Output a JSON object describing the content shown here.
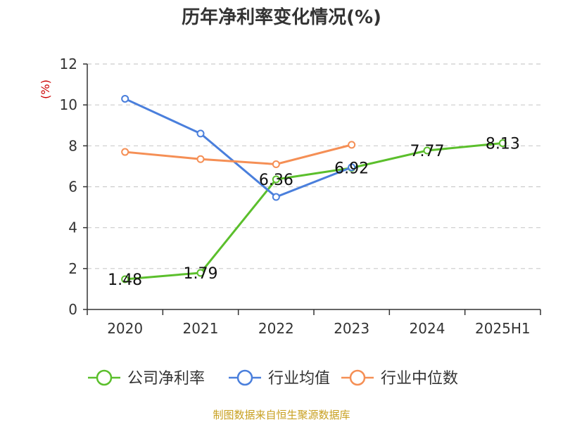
{
  "chart_data": {
    "type": "line",
    "title": "历年净利率变化情况(%)",
    "ylabel": "(%)",
    "ylim": [
      0,
      12
    ],
    "yticks": [
      0,
      2,
      4,
      6,
      8,
      10,
      12
    ],
    "grid": true,
    "legend_position": "bottom",
    "categories": [
      "2020",
      "2021",
      "2022",
      "2023",
      "2024",
      "2025H1"
    ],
    "series": [
      {
        "name": "公司净利率",
        "color": "#5bbf2c",
        "values": [
          1.48,
          1.79,
          6.36,
          6.92,
          7.77,
          8.13
        ],
        "labels": [
          "1.48",
          "1.79",
          "6.36",
          "6.92",
          "7.77",
          "8.13"
        ]
      },
      {
        "name": "行业均值",
        "color": "#4a7fdc",
        "values": [
          10.3,
          8.6,
          5.5,
          6.95,
          null,
          null
        ]
      },
      {
        "name": "行业中位数",
        "color": "#f58f55",
        "values": [
          7.7,
          7.35,
          7.1,
          8.05,
          null,
          null
        ]
      }
    ],
    "source": "制图数据来自恒生聚源数据库"
  }
}
